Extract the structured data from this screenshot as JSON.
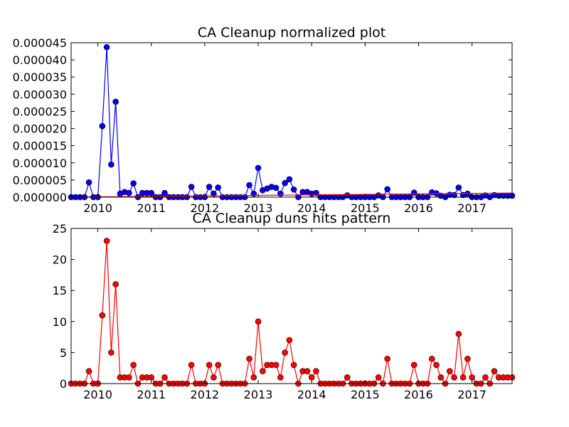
{
  "chart_data": [
    {
      "type": "line",
      "title": "CA Cleanup normalized plot",
      "xlabel": "",
      "ylabel": "",
      "xlim": [
        "2009-07",
        "2017-10"
      ],
      "ylim": [
        0,
        4.5e-05
      ],
      "yticks": [
        "0.000000",
        "0.000005",
        "0.000010",
        "0.000015",
        "0.000020",
        "0.000025",
        "0.000030",
        "0.000035",
        "0.000040",
        "0.000045"
      ],
      "xticks": [
        "2010",
        "2011",
        "2012",
        "2013",
        "2014",
        "2015",
        "2016",
        "2017"
      ],
      "grid": false,
      "x": [
        "2009-07",
        "2009-08",
        "2009-09",
        "2009-10",
        "2009-11",
        "2009-12",
        "2010-01",
        "2010-02",
        "2010-03",
        "2010-04",
        "2010-05",
        "2010-06",
        "2010-07",
        "2010-08",
        "2010-09",
        "2010-10",
        "2010-11",
        "2010-12",
        "2011-01",
        "2011-02",
        "2011-03",
        "2011-04",
        "2011-05",
        "2011-06",
        "2011-07",
        "2011-08",
        "2011-09",
        "2011-10",
        "2011-11",
        "2011-12",
        "2012-01",
        "2012-02",
        "2012-03",
        "2012-04",
        "2012-05",
        "2012-06",
        "2012-07",
        "2012-08",
        "2012-09",
        "2012-10",
        "2012-11",
        "2012-12",
        "2013-01",
        "2013-02",
        "2013-03",
        "2013-04",
        "2013-05",
        "2013-06",
        "2013-07",
        "2013-08",
        "2013-09",
        "2013-10",
        "2013-11",
        "2013-12",
        "2014-01",
        "2014-02",
        "2014-03",
        "2014-04",
        "2014-05",
        "2014-06",
        "2014-07",
        "2014-08",
        "2014-09",
        "2014-10",
        "2014-11",
        "2014-12",
        "2015-01",
        "2015-02",
        "2015-03",
        "2015-04",
        "2015-05",
        "2015-06",
        "2015-07",
        "2015-08",
        "2015-09",
        "2015-10",
        "2015-11",
        "2015-12",
        "2016-01",
        "2016-02",
        "2016-03",
        "2016-04",
        "2016-05",
        "2016-06",
        "2016-07",
        "2016-08",
        "2016-09",
        "2016-10",
        "2016-11",
        "2016-12",
        "2017-01",
        "2017-02",
        "2017-03",
        "2017-04",
        "2017-05",
        "2017-06",
        "2017-07",
        "2017-08",
        "2017-09",
        "2017-10"
      ],
      "series": [
        {
          "color": "#0000ff",
          "values": [
            0,
            0,
            0,
            0,
            4.3e-06,
            0,
            0,
            2.07e-05,
            4.37e-05,
            9.5e-06,
            2.78e-05,
            1e-06,
            1.5e-06,
            1.2e-06,
            4e-06,
            0,
            1.2e-06,
            1.2e-06,
            1.2e-06,
            0,
            0,
            1.2e-06,
            0,
            0,
            0,
            0,
            0,
            3e-06,
            0,
            0,
            0,
            3e-06,
            1e-06,
            2.8e-06,
            0,
            0,
            0,
            0,
            0,
            0,
            3.5e-06,
            1e-06,
            8.5e-06,
            2e-06,
            2.5e-06,
            3e-06,
            2.7e-06,
            1e-06,
            4.1e-06,
            5.2e-06,
            2.2e-06,
            0,
            1.5e-06,
            1.5e-06,
            1e-06,
            1.2e-06,
            0,
            0,
            0,
            0,
            0,
            0,
            5e-07,
            0,
            0,
            0,
            0,
            0,
            0,
            5e-07,
            0,
            2.3e-06,
            0,
            0,
            0,
            0,
            0,
            1.3e-06,
            0,
            0,
            0,
            1.4e-06,
            1.1e-06,
            4e-07,
            0,
            7e-07,
            6e-07,
            2.8e-06,
            6e-07,
            1e-06,
            0,
            0,
            0,
            5e-07,
            0,
            6e-07,
            4e-07,
            4e-07,
            4e-07,
            4e-07
          ]
        },
        {
          "color": "#ff0000",
          "trend": [
            0,
            1.2e-06
          ]
        }
      ]
    },
    {
      "type": "line",
      "title": "CA Cleanup duns hits pattern",
      "xlabel": "",
      "ylabel": "",
      "xlim": [
        "2009-07",
        "2017-10"
      ],
      "ylim": [
        0,
        25
      ],
      "yticks": [
        "0",
        "5",
        "10",
        "15",
        "20",
        "25"
      ],
      "xticks": [
        "2010",
        "2011",
        "2012",
        "2013",
        "2014",
        "2015",
        "2016",
        "2017"
      ],
      "grid": false,
      "series": [
        {
          "color": "#ff0000",
          "values": [
            0,
            0,
            0,
            0,
            2,
            0,
            0,
            11,
            23,
            5,
            16,
            1,
            1,
            1,
            3,
            0,
            1,
            1,
            1,
            0,
            0,
            1,
            0,
            0,
            0,
            0,
            0,
            3,
            0,
            0,
            0,
            3,
            1,
            3,
            0,
            0,
            0,
            0,
            0,
            0,
            4,
            1,
            10,
            2,
            3,
            3,
            3,
            1,
            5,
            7,
            3,
            0,
            2,
            2,
            1,
            2,
            0,
            0,
            0,
            0,
            0,
            0,
            1,
            0,
            0,
            0,
            0,
            0,
            0,
            1,
            0,
            4,
            0,
            0,
            0,
            0,
            0,
            3,
            0,
            0,
            0,
            4,
            3,
            1,
            0,
            2,
            1,
            8,
            1,
            4,
            1,
            0,
            0,
            1,
            0,
            2,
            1,
            1,
            1,
            1
          ]
        }
      ]
    }
  ]
}
